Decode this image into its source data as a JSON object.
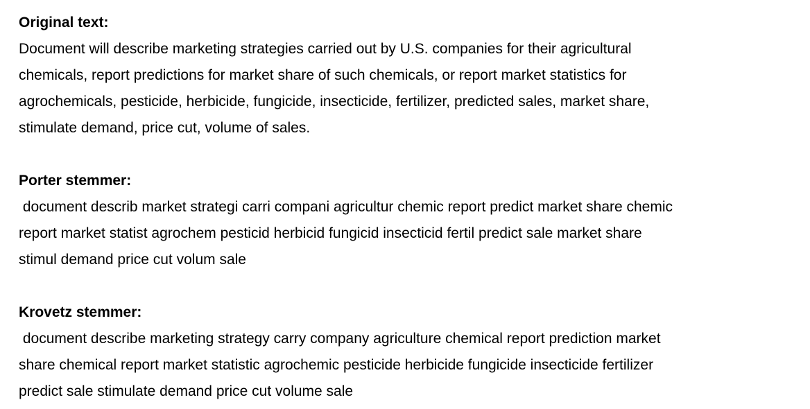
{
  "sections": [
    {
      "heading": "Original text:",
      "lines": [
        "Document will describe marketing strategies carried out by U.S. companies for their agricultural",
        "chemicals, report predictions for market share of such chemicals, or report market statistics for",
        "agrochemicals, pesticide, herbicide, fungicide, insecticide, fertilizer, predicted sales, market share,",
        "stimulate demand, price cut, volume of sales."
      ]
    },
    {
      "heading": "Porter stemmer:",
      "lines": [
        " document describ market strategi carri compani agricultur chemic report predict market share chemic",
        "report market statist agrochem pesticid herbicid fungicid insecticid fertil predict sale market share",
        "stimul demand price cut volum sale"
      ]
    },
    {
      "heading": "Krovetz stemmer:",
      "lines": [
        " document describe marketing strategy carry company agriculture chemical report prediction market",
        "share chemical report market statistic agrochemic pesticide herbicide fungicide insecticide fertilizer",
        "predict sale stimulate demand price cut volume sale"
      ]
    }
  ]
}
